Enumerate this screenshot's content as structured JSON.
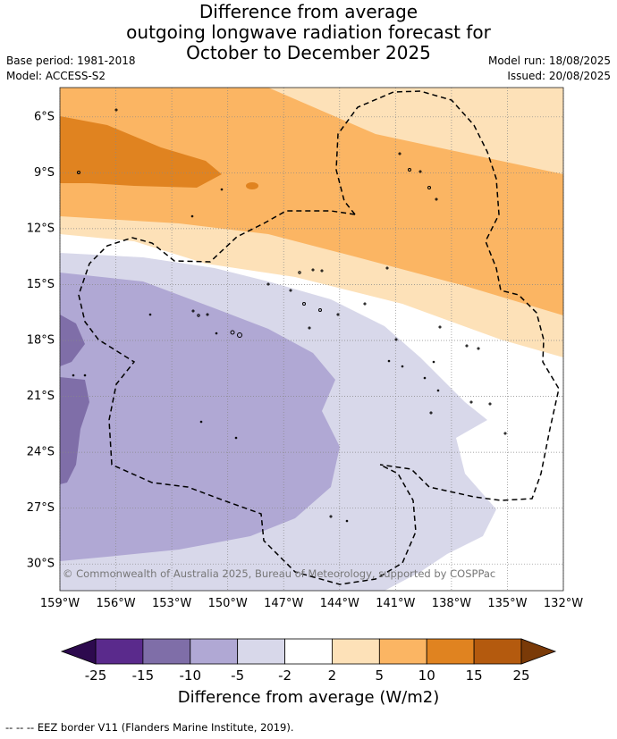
{
  "header": {
    "title_lines": [
      "Difference from average",
      "outgoing longwave radiation forecast for",
      "October to December 2025"
    ],
    "base_period": "Base period: 1981-2018",
    "model": "Model: ACCESS-S2",
    "model_run": "Model run: 18/08/2025",
    "issued": "Issued: 20/08/2025"
  },
  "copyright": "© Commonwealth of Australia 2025, Bureau of Meteorology, supported by COSPPac",
  "footnote": "--  --  -- EEZ border V11 (Flanders Marine Institute, 2019).",
  "chart_data": {
    "type": "heatmap",
    "title": "Difference from average outgoing longwave radiation forecast for October to December 2025",
    "x_tick_labels": [
      "159°W",
      "156°W",
      "153°W",
      "150°W",
      "147°W",
      "144°W",
      "141°W",
      "138°W",
      "135°W",
      "132°W"
    ],
    "y_tick_labels": [
      "6°S",
      "9°S",
      "12°S",
      "15°S",
      "18°S",
      "21°S",
      "24°S",
      "27°S",
      "30°S"
    ],
    "x_values": [
      -159,
      -156,
      -153,
      -150,
      -147,
      -144,
      -141,
      -138,
      -135,
      -132
    ],
    "y_values": [
      -6,
      -9,
      -12,
      -15,
      -18,
      -21,
      -24,
      -27,
      -30
    ],
    "xlim": [
      -159,
      -132
    ],
    "ylim": [
      -31.5,
      -4.5
    ],
    "grid": true,
    "colorbar": {
      "label": "Difference from average (W/m2)",
      "levels": [
        -25,
        -15,
        -10,
        -5,
        -2,
        2,
        5,
        10,
        15,
        25
      ],
      "level_labels": [
        "-25",
        "-15",
        "-10",
        "-5",
        "-2",
        "2",
        "5",
        "10",
        "15",
        "25"
      ],
      "colors": [
        "#5a2a8c",
        "#7f6ea8",
        "#b0a8d4",
        "#d8d8ea",
        "#ffffff",
        "#fde1b8",
        "#fbb563",
        "#e08320",
        "#b45a0e"
      ],
      "under_color": "#2d0a4e",
      "over_color": "#7a3a08"
    },
    "regions": [
      {
        "category": "2 to 5",
        "color": "#fde1b8",
        "approx_extent": "9°S–20°S band, positive anomaly north-east"
      },
      {
        "category": "5 to 10",
        "color": "#fbb563",
        "approx_extent": "6°S–17°S band"
      },
      {
        "category": "10 to 15",
        "color": "#e08320",
        "approx_extent": "6°S–10°S west of 150°W"
      },
      {
        "category": "-2 to 2",
        "color": "#ffffff",
        "approx_extent": "12°S–26°S transition band"
      },
      {
        "category": "-5 to -2",
        "color": "#d8d8ea",
        "approx_extent": "13°S–31°S"
      },
      {
        "category": "-10 to -5",
        "color": "#b0a8d4",
        "approx_extent": "15°S–29°S west of 144°W"
      },
      {
        "category": "-15 to -10",
        "color": "#7f6ea8",
        "approx_extent": "17°S–26°S near 159°W"
      }
    ]
  }
}
